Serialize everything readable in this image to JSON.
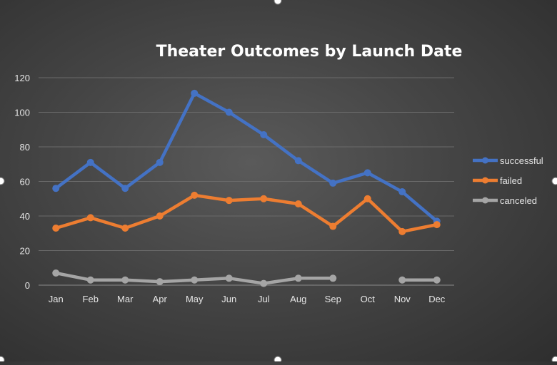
{
  "chart_data": {
    "type": "line",
    "title": "Theater Outcomes by Launch Date",
    "xlabel": "",
    "ylabel": "",
    "categories": [
      "Jan",
      "Feb",
      "Mar",
      "Apr",
      "May",
      "Jun",
      "Jul",
      "Aug",
      "Sep",
      "Oct",
      "Nov",
      "Dec"
    ],
    "ylim": [
      0,
      120
    ],
    "yticks": [
      0,
      20,
      40,
      60,
      80,
      100,
      120
    ],
    "grid": true,
    "legend_position": "right",
    "series": [
      {
        "name": "successful",
        "color": "#4472c4",
        "values": [
          56,
          71,
          56,
          71,
          111,
          100,
          87,
          72,
          59,
          65,
          54,
          37
        ]
      },
      {
        "name": "failed",
        "color": "#ed7d31",
        "values": [
          33,
          39,
          33,
          40,
          52,
          49,
          50,
          47,
          34,
          50,
          31,
          35
        ]
      },
      {
        "name": "canceled",
        "color": "#a5a5a5",
        "values": [
          7,
          3,
          3,
          2,
          3,
          4,
          1,
          4,
          4,
          null,
          3,
          3
        ]
      }
    ]
  }
}
